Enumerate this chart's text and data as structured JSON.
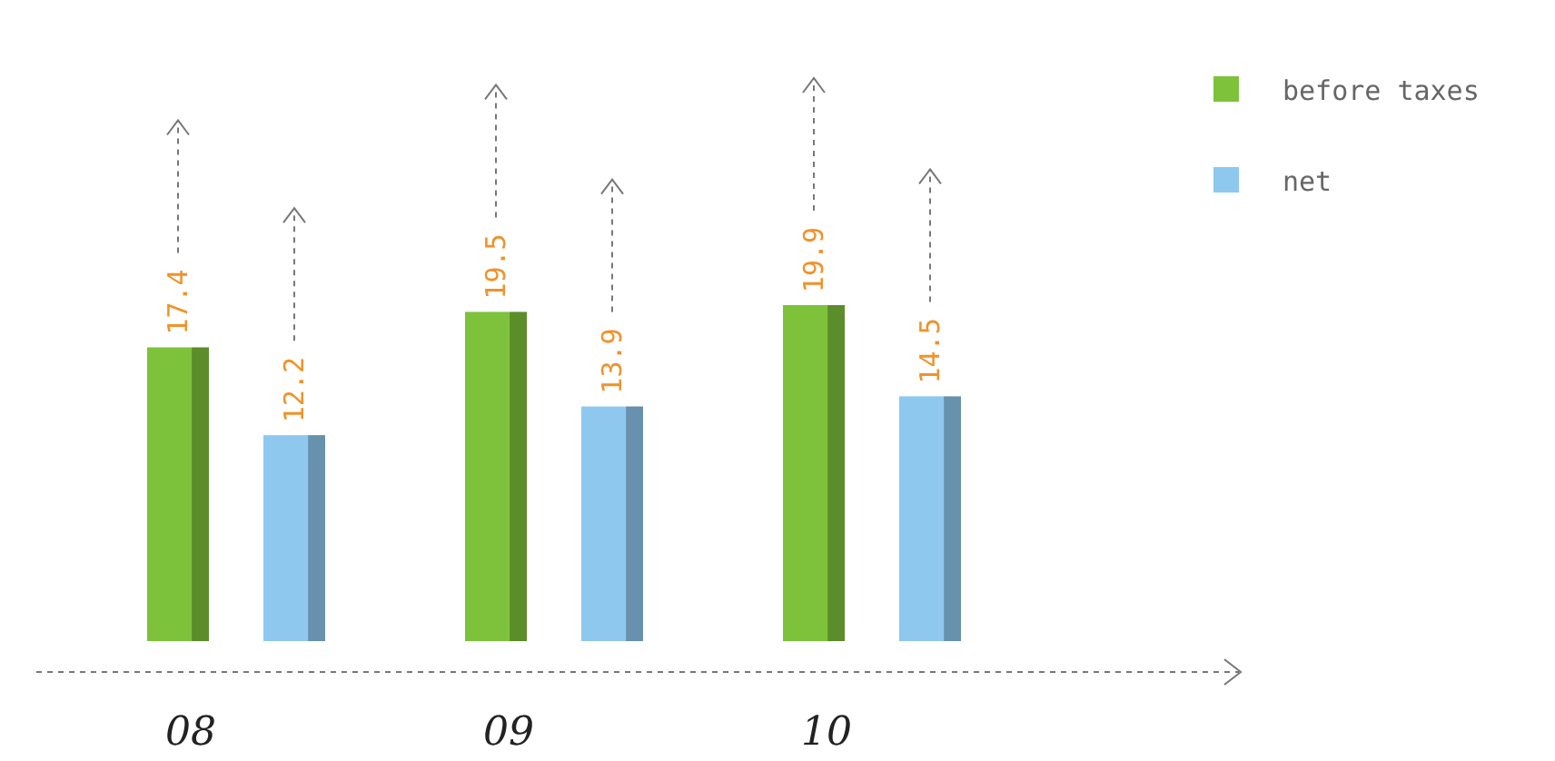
{
  "chart_data": {
    "type": "bar",
    "categories": [
      "08",
      "09",
      "10"
    ],
    "series": [
      {
        "name": "before taxes",
        "color": "#7dc23a",
        "values": [
          17.4,
          19.5,
          19.9
        ]
      },
      {
        "name": "net",
        "color": "#8ec8ee",
        "values": [
          12.2,
          13.9,
          14.5
        ]
      }
    ],
    "data_labels": true,
    "legend": "top right"
  }
}
